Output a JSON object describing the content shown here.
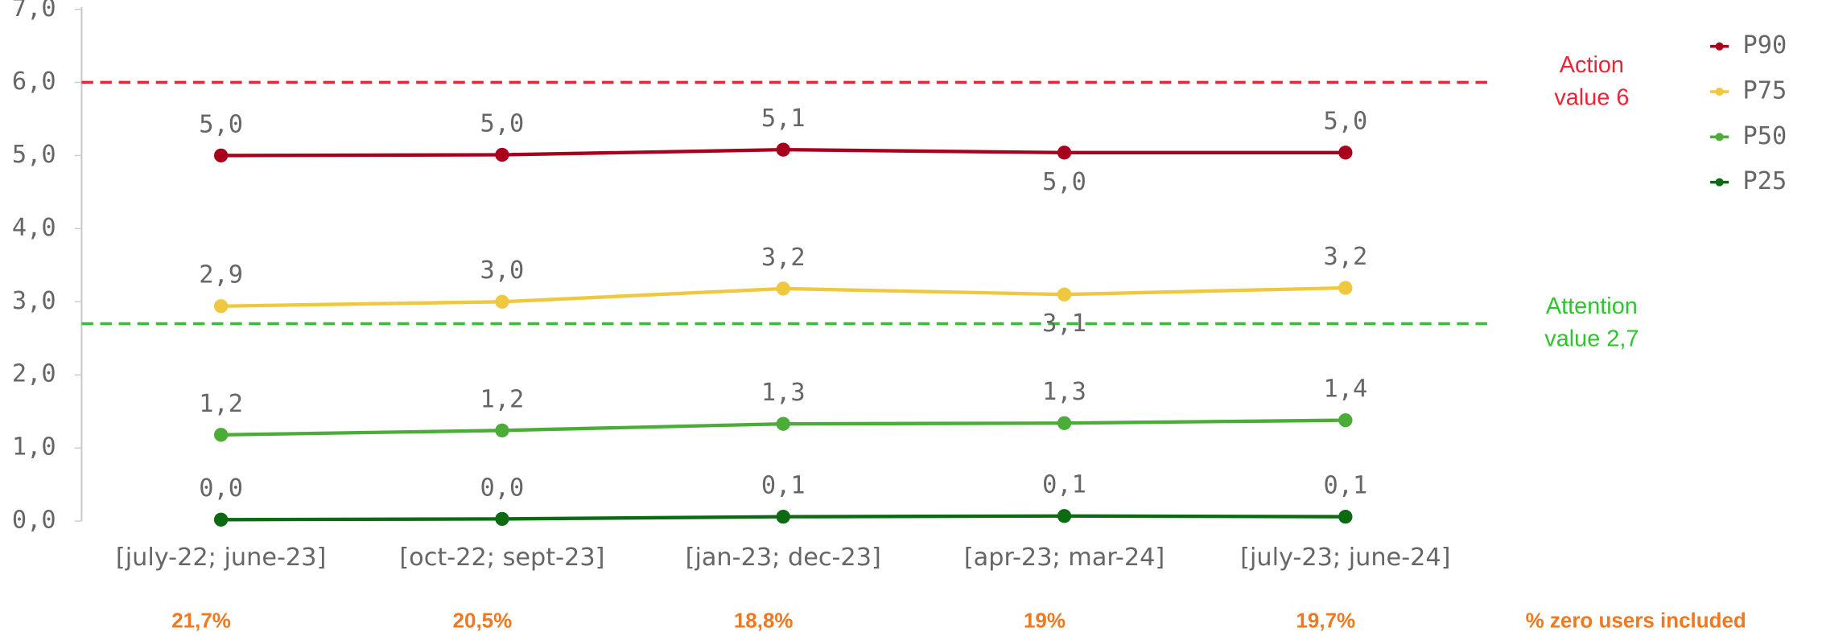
{
  "chart_data": {
    "type": "line",
    "categories": [
      "[july-22; june-23]",
      "[oct-22; sept-23]",
      "[jan-23; dec-23]",
      "[apr-23; mar-24]",
      "[july-23; june-24]"
    ],
    "series": [
      {
        "name": "P90",
        "color": "#a8001c",
        "values": [
          5.0,
          5.01,
          5.08,
          5.04,
          5.04
        ],
        "value_labels": [
          "5,0",
          "5,0",
          "5,1",
          "5,0",
          "5,0"
        ]
      },
      {
        "name": "P75",
        "color": "#efc83f",
        "values": [
          2.94,
          3.0,
          3.18,
          3.1,
          3.19
        ],
        "value_labels": [
          "2,9",
          "3,0",
          "3,2",
          "3,1",
          "3,2"
        ]
      },
      {
        "name": "P50",
        "color": "#4bad38",
        "values": [
          1.18,
          1.24,
          1.33,
          1.34,
          1.38
        ],
        "value_labels": [
          "1,2",
          "1,2",
          "1,3",
          "1,3",
          "1,4"
        ]
      },
      {
        "name": "P25",
        "color": "#0b6a12",
        "values": [
          0.02,
          0.03,
          0.06,
          0.07,
          0.06
        ],
        "value_labels": [
          "0,0",
          "0,0",
          "0,1",
          "0,1",
          "0,1"
        ]
      }
    ],
    "ylim": [
      0,
      7
    ],
    "yticks": [
      {
        "value": 0,
        "label": "0,0"
      },
      {
        "value": 1,
        "label": "1,0"
      },
      {
        "value": 2,
        "label": "2,0"
      },
      {
        "value": 3,
        "label": "3,0"
      },
      {
        "value": 4,
        "label": "4,0"
      },
      {
        "value": 5,
        "label": "5,0"
      },
      {
        "value": 6,
        "label": "6,0"
      },
      {
        "value": 7,
        "label": "7,0"
      }
    ],
    "reference_lines": [
      {
        "value": 6,
        "label": [
          "Action",
          "value 6"
        ],
        "color": "#ee2233"
      },
      {
        "value": 2.7,
        "label": [
          "Attention",
          "value 2,7"
        ],
        "color": "#2ec42e"
      }
    ],
    "zero_users": {
      "label": "% zero users included",
      "values": [
        "21,7%",
        "20,5%",
        "18,8%",
        "19%",
        "19,7%"
      ]
    },
    "legend": "top-right"
  }
}
